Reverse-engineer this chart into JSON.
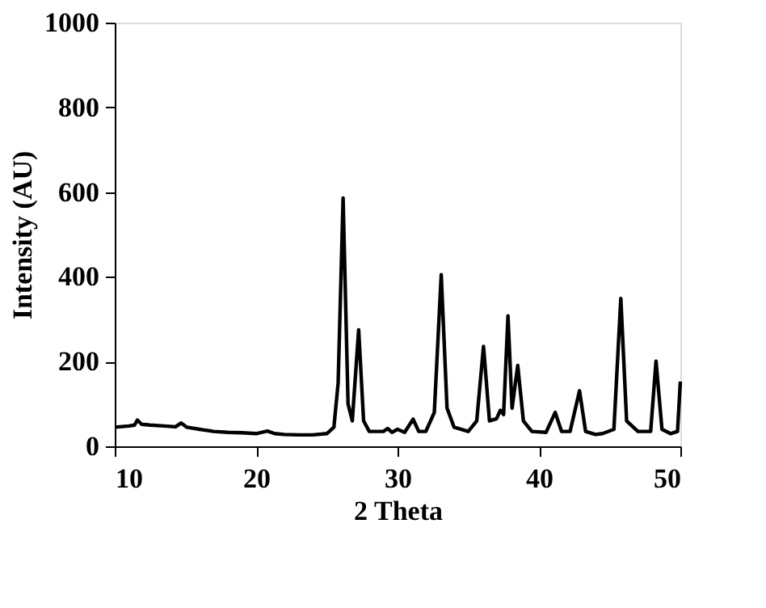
{
  "chart_data": {
    "type": "line",
    "xlabel": "2 Theta",
    "ylabel": "Intensity (AU)",
    "xlim": [
      10,
      50
    ],
    "ylim": [
      0,
      1000
    ],
    "xticks": [
      10,
      20,
      30,
      40,
      50
    ],
    "yticks": [
      0,
      200,
      400,
      600,
      800,
      1000
    ],
    "grid": false,
    "legend": false,
    "marker": "none",
    "line_style": "solid",
    "series": [
      {
        "color": "#000000",
        "x": [
          10,
          11,
          11.4,
          11.6,
          11.9,
          12.5,
          13.5,
          14.3,
          14.7,
          15.1,
          16,
          17,
          18,
          19,
          20,
          20.8,
          21.3,
          22,
          23,
          24,
          25,
          25.5,
          25.8,
          26.15,
          26.5,
          26.8,
          27.25,
          27.6,
          28,
          29,
          29.3,
          29.6,
          30,
          30.5,
          31.1,
          31.5,
          32,
          32.6,
          33.09,
          33.5,
          34,
          35,
          35.6,
          36.08,
          36.5,
          37,
          37.27,
          37.5,
          37.81,
          38.1,
          38.5,
          38.9,
          39.5,
          40.5,
          41.15,
          41.6,
          42.2,
          42.87,
          43.3,
          44,
          44.5,
          45.3,
          45.79,
          46.2,
          47,
          47.9,
          48.28,
          48.7,
          49.3,
          49.8,
          50
        ],
        "values": [
          45,
          48,
          50,
          62,
          52,
          50,
          48,
          46,
          55,
          45,
          40,
          35,
          33,
          32,
          30,
          36,
          30,
          28,
          27,
          27,
          30,
          45,
          150,
          586,
          100,
          60,
          275,
          60,
          35,
          35,
          42,
          33,
          40,
          33,
          64,
          35,
          35,
          80,
          405,
          90,
          45,
          35,
          60,
          236,
          60,
          65,
          85,
          75,
          308,
          90,
          191,
          60,
          35,
          33,
          80,
          35,
          35,
          131,
          35,
          28,
          30,
          40,
          349,
          60,
          35,
          35,
          201,
          40,
          30,
          35,
          153
        ]
      }
    ]
  }
}
